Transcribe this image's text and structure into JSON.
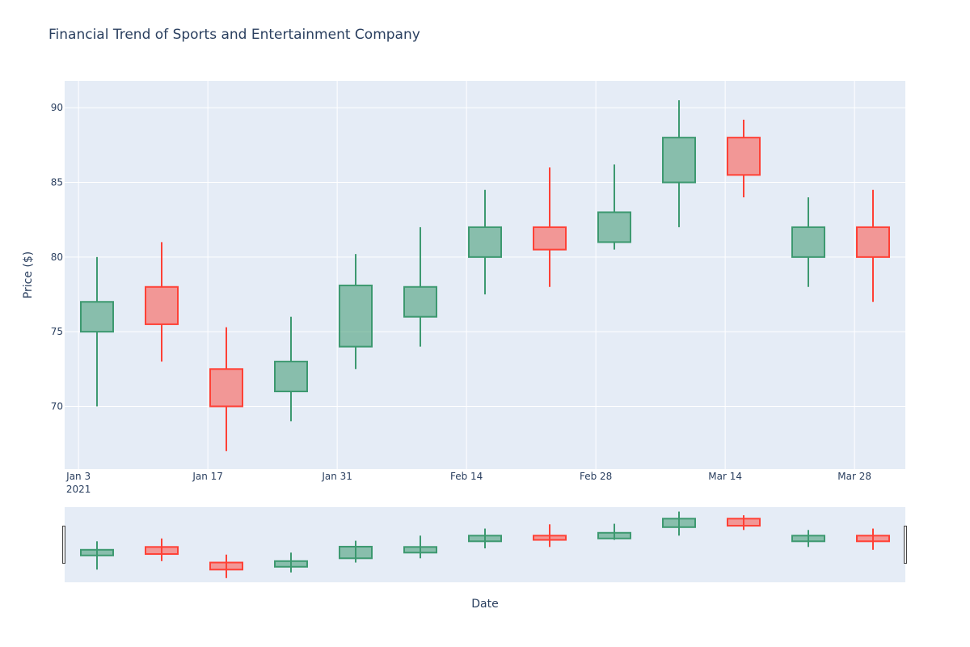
{
  "chart_data": {
    "type": "candlestick",
    "title": "Financial Trend of Sports and Entertainment Company",
    "xlabel": "Date",
    "ylabel": "Price ($)",
    "x_tick_labels": [
      "Jan 3",
      "Jan 17",
      "Jan 31",
      "Feb 14",
      "Feb 28",
      "Mar 14",
      "Mar 28"
    ],
    "x_tick_year": "2021",
    "y_ticks": [
      70,
      75,
      80,
      85,
      90
    ],
    "ylim": [
      65.8,
      91.8
    ],
    "grid": true,
    "has_range_slider": true,
    "colors": {
      "increasing": "#3d9970",
      "increasing_fill": "rgba(61,153,112,0.55)",
      "decreasing": "#ff4136",
      "decreasing_fill": "rgba(255,65,54,0.5)",
      "plot_bg": "#e5ecf6",
      "grid": "#ffffff",
      "text": "#2a3f5f"
    },
    "candles": [
      {
        "date": "2021-01-05",
        "open": 75,
        "high": 80,
        "low": 70,
        "close": 77
      },
      {
        "date": "2021-01-12",
        "open": 78,
        "high": 81,
        "low": 73,
        "close": 75.5
      },
      {
        "date": "2021-01-19",
        "open": 72.5,
        "high": 75.3,
        "low": 67,
        "close": 70
      },
      {
        "date": "2021-01-26",
        "open": 71,
        "high": 76,
        "low": 69,
        "close": 73
      },
      {
        "date": "2021-02-02",
        "open": 74,
        "high": 80.2,
        "low": 72.5,
        "close": 78.1
      },
      {
        "date": "2021-02-09",
        "open": 76,
        "high": 82,
        "low": 74,
        "close": 78
      },
      {
        "date": "2021-02-16",
        "open": 80,
        "high": 84.5,
        "low": 77.5,
        "close": 82
      },
      {
        "date": "2021-02-23",
        "open": 82,
        "high": 86,
        "low": 78,
        "close": 80.5
      },
      {
        "date": "2021-03-02",
        "open": 81,
        "high": 86.2,
        "low": 80.5,
        "close": 83
      },
      {
        "date": "2021-03-09",
        "open": 85,
        "high": 90.5,
        "low": 82,
        "close": 88
      },
      {
        "date": "2021-03-16",
        "open": 88,
        "high": 89.2,
        "low": 84,
        "close": 85.5
      },
      {
        "date": "2021-03-23",
        "open": 80,
        "high": 84,
        "low": 78,
        "close": 82
      },
      {
        "date": "2021-03-30",
        "open": 82,
        "high": 84.5,
        "low": 77,
        "close": 80
      }
    ]
  }
}
